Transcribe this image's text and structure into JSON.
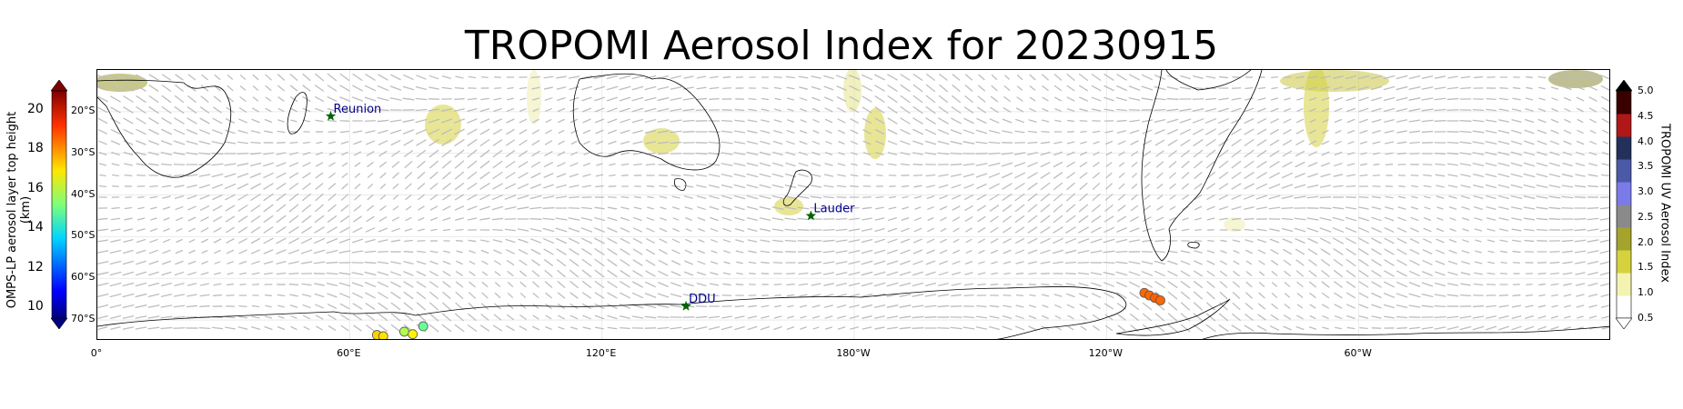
{
  "title": "TROPOMI Aerosol Index for 20230915",
  "map": {
    "lon_range": [
      0,
      360
    ],
    "lat_range": [
      -75,
      -10
    ],
    "lat_ticks": [
      {
        "lat": -20,
        "label": "20°S"
      },
      {
        "lat": -30,
        "label": "30°S"
      },
      {
        "lat": -40,
        "label": "40°S"
      },
      {
        "lat": -50,
        "label": "50°S"
      },
      {
        "lat": -60,
        "label": "60°S"
      },
      {
        "lat": -70,
        "label": "70°S"
      }
    ],
    "lon_ticks": [
      {
        "lon": 0,
        "label": "0°"
      },
      {
        "lon": 60,
        "label": "60°E"
      },
      {
        "lon": 120,
        "label": "120°E"
      },
      {
        "lon": 180,
        "label": "180°W"
      },
      {
        "lon": 240,
        "label": "120°W"
      },
      {
        "lon": 300,
        "label": "60°W"
      }
    ],
    "stations": [
      {
        "name": "Reunion",
        "lon": 55.5,
        "lat": -21.1
      },
      {
        "name": "Lauder",
        "lon": 169.7,
        "lat": -45.0
      },
      {
        "name": "DDU",
        "lon": 140.0,
        "lat": -66.7
      }
    ],
    "omps_points": [
      {
        "lon": 66.5,
        "lat": -73.6,
        "height": 17.2
      },
      {
        "lon": 68.0,
        "lat": -73.9,
        "height": 17.0
      },
      {
        "lon": 73.0,
        "lat": -72.8,
        "height": 15.8
      },
      {
        "lon": 75.0,
        "lat": -73.4,
        "height": 16.8
      },
      {
        "lon": 77.5,
        "lat": -71.5,
        "height": 15.0
      },
      {
        "lon": 249.0,
        "lat": -63.5,
        "height": 18.4
      },
      {
        "lon": 250.2,
        "lat": -64.1,
        "height": 18.4
      },
      {
        "lon": 251.5,
        "lat": -64.7,
        "height": 18.5
      },
      {
        "lon": 252.8,
        "lat": -65.3,
        "height": 18.4
      }
    ],
    "colors": {
      "station_marker": "#006400",
      "station_label": "#00008b",
      "wind_arrow": "#bdbdbd",
      "coastline": "#000000"
    }
  },
  "left_colorbar": {
    "label": "OMPS-LP aerosol layer top height (km)",
    "range": [
      9.5,
      21
    ],
    "ticks": [
      "20",
      "18",
      "16",
      "14",
      "12",
      "10"
    ],
    "tick_values": [
      20,
      18,
      16,
      14,
      12,
      10
    ],
    "colormap": "jet"
  },
  "right_colorbar": {
    "label": "TROPOMI UV Aerosol Index",
    "range": [
      0.5,
      5.0
    ],
    "ticks": [
      "5.0",
      "4.5",
      "4.0",
      "3.5",
      "3.0",
      "2.5",
      "2.0",
      "1.5",
      "1.0",
      "0.5"
    ],
    "tick_values": [
      5.0,
      4.5,
      4.0,
      3.5,
      3.0,
      2.5,
      2.0,
      1.5,
      1.0,
      0.5
    ],
    "colors": [
      "#ffffff",
      "#f4f3b0",
      "#d6d23e",
      "#a4a32c",
      "#8a8a8a",
      "#7a7ae8",
      "#4a5aa8",
      "#23305c",
      "#b01818",
      "#3a0000"
    ]
  }
}
